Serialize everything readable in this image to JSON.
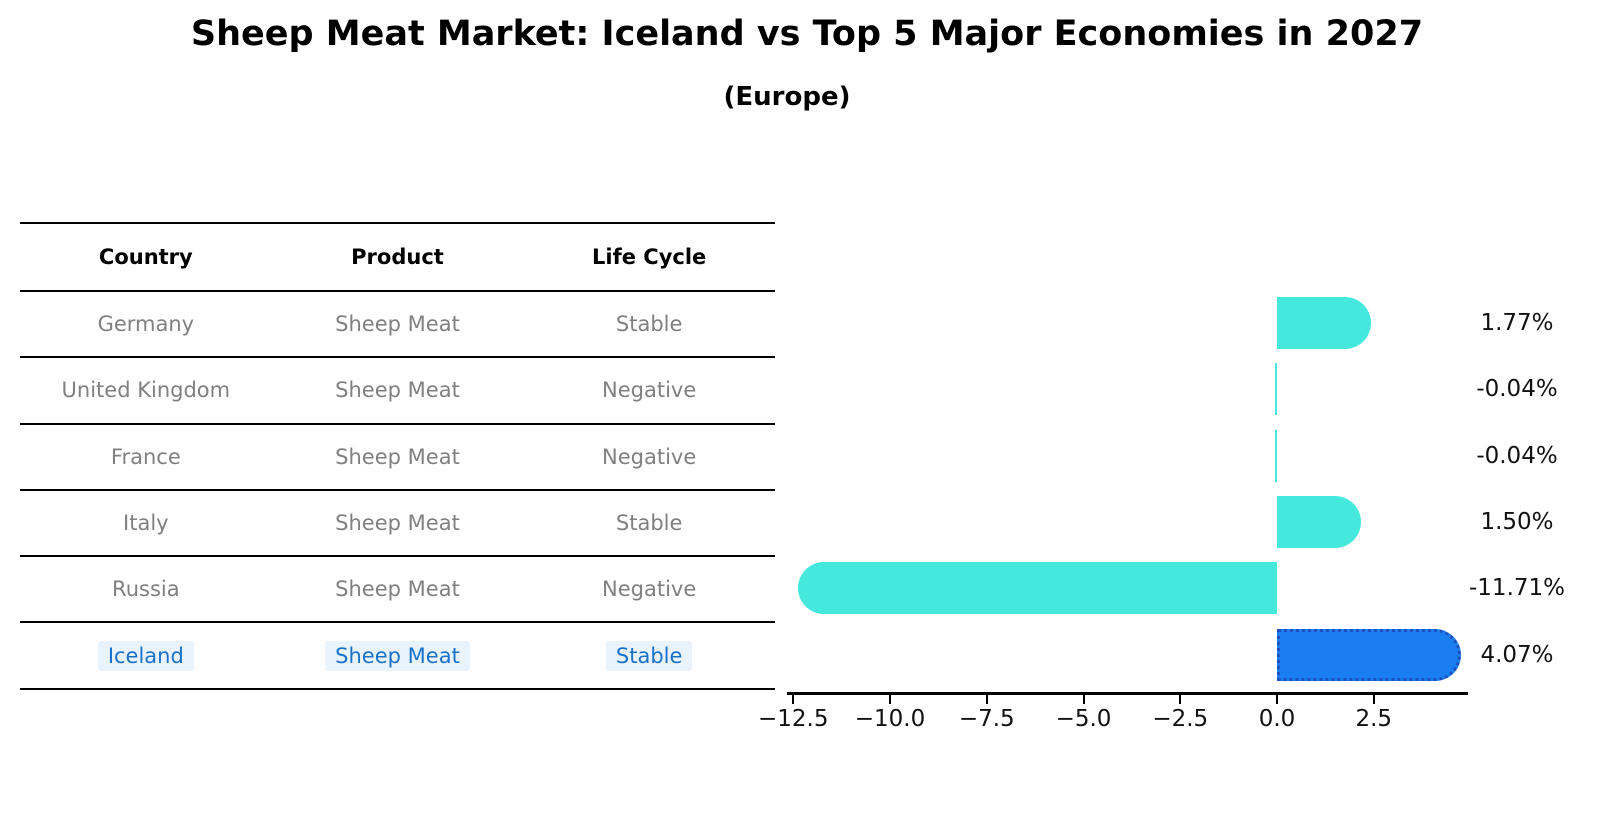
{
  "title": "Sheep Meat Market: Iceland vs Top 5 Major Economies in 2027",
  "subtitle": "(Europe)",
  "table": {
    "headers": [
      "Country",
      "Product",
      "Life Cycle"
    ],
    "rows": [
      {
        "country": "Germany",
        "product": "Sheep Meat",
        "life_cycle": "Stable",
        "highlight": false
      },
      {
        "country": "United Kingdom",
        "product": "Sheep Meat",
        "life_cycle": "Negative",
        "highlight": false
      },
      {
        "country": "France",
        "product": "Sheep Meat",
        "life_cycle": "Negative",
        "highlight": false
      },
      {
        "country": "Italy",
        "product": "Sheep Meat",
        "life_cycle": "Stable",
        "highlight": false
      },
      {
        "country": "Russia",
        "product": "Sheep Meat",
        "life_cycle": "Negative",
        "highlight": false
      },
      {
        "country": "Iceland",
        "product": "Sheep Meat",
        "life_cycle": "Stable",
        "highlight": true
      }
    ]
  },
  "chart_data": {
    "type": "bar",
    "orientation": "horizontal",
    "title": "Sheep Meat Market: Iceland vs Top 5 Major Economies in 2027",
    "subtitle": "(Europe)",
    "categories": [
      "Germany",
      "United Kingdom",
      "France",
      "Italy",
      "Russia",
      "Iceland"
    ],
    "values": [
      1.77,
      -0.04,
      -0.04,
      1.5,
      -11.71,
      4.07
    ],
    "value_labels": [
      "1.77%",
      "-0.04%",
      "-0.04%",
      "1.50%",
      "-11.71%",
      "4.07%"
    ],
    "unit": "%",
    "highlight_index": 5,
    "x_ticks": [
      -12.5,
      -10.0,
      -7.5,
      -5.0,
      -2.5,
      0.0,
      2.5
    ],
    "x_tick_labels": [
      "−12.5",
      "−10.0",
      "−7.5",
      "−5.0",
      "−2.5",
      "0.0",
      "2.5"
    ],
    "xlim": [
      -12.67,
      4.95
    ],
    "grid": false,
    "legend": null,
    "colors": {
      "default_bar": "#45e8dc",
      "highlight_bar": "#1b7ef0",
      "highlight_border": "#1d4fc0",
      "table_text": "#808080",
      "highlight_text": "#1a72c8",
      "axis": "#000000",
      "label_text": "#111111"
    }
  }
}
